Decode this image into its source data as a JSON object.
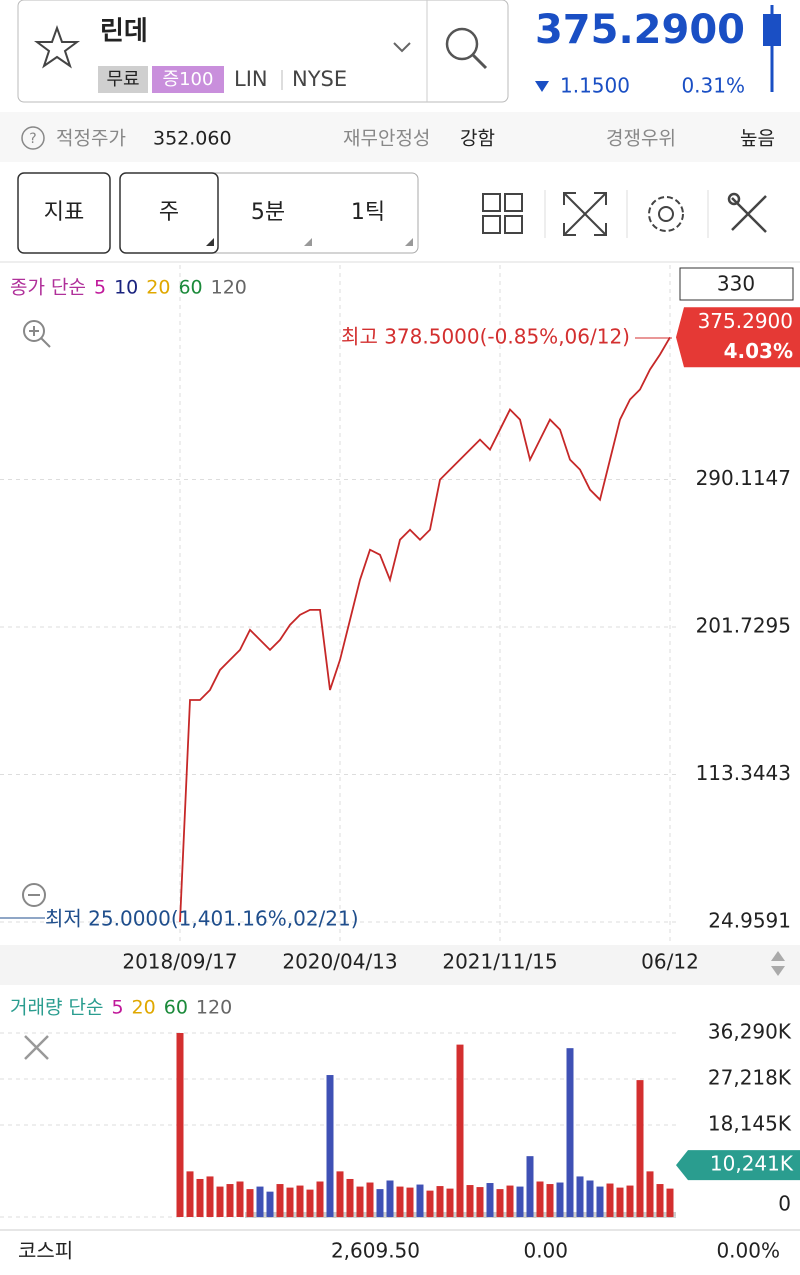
{
  "header": {
    "name": "린데",
    "badges": [
      "무료",
      "증100"
    ],
    "ticker": "LIN",
    "exchange": "NYSE",
    "price": "375.2900",
    "change": "1.1500",
    "change_pct": "0.31%"
  },
  "info": [
    {
      "label": "적정주가",
      "value": "352.060"
    },
    {
      "label": "재무안정성",
      "value": "강함"
    },
    {
      "label": "경쟁우위",
      "value": "높음"
    }
  ],
  "toolbar": {
    "indicator": "지표",
    "periods": [
      "주",
      "5분",
      "1틱"
    ]
  },
  "chart_data": [
    {
      "type": "line",
      "legend_title": "종가 단순",
      "ma_periods": [
        5,
        10,
        20,
        60,
        120
      ],
      "ma_colors": [
        "#c0189a",
        "#1a237e",
        "#e0a800",
        "#1b8a3a",
        "#666666"
      ],
      "scale_box": "330",
      "last_label": "375.2900",
      "last_change": "4.03%",
      "high_annotation": "최고 378.5000(-0.85%,06/12)",
      "low_annotation": "최저 25.0000(1,401.16%,02/21)",
      "categories": [
        "2018/09/17",
        null,
        null,
        null,
        null,
        null,
        null,
        null,
        null,
        null,
        null,
        null,
        null,
        null,
        null,
        null,
        "2020/04/13",
        null,
        null,
        null,
        null,
        null,
        null,
        null,
        null,
        null,
        null,
        null,
        null,
        null,
        null,
        null,
        "2021/11/15",
        null,
        null,
        null,
        null,
        null,
        null,
        null,
        null,
        null,
        null,
        null,
        null,
        null,
        null,
        null,
        null,
        "06/12"
      ],
      "series": [
        {
          "color": "#c62828",
          "values": [
            25,
            158,
            158,
            164,
            176,
            182,
            188,
            200,
            194,
            188,
            194,
            203,
            209,
            212,
            212,
            164,
            182,
            206,
            230,
            248,
            245,
            230,
            254,
            260,
            254,
            260,
            290,
            296,
            302,
            308,
            314,
            308,
            320,
            332,
            326,
            302,
            314,
            326,
            320,
            302,
            296,
            284,
            278,
            302,
            326,
            338,
            344,
            356,
            365,
            375.29
          ]
        }
      ],
      "ylim": [
        11.2,
        418.6
      ],
      "yticks": [
        24.9591,
        113.3443,
        201.7295,
        290.1147
      ],
      "grid": true
    },
    {
      "type": "bar",
      "legend_title": "거래량 단순",
      "ma_periods": [
        5,
        20,
        60,
        120
      ],
      "ma_colors": [
        "#c0189a",
        "#e0a800",
        "#1b8a3a",
        "#666666"
      ],
      "up_color": "#d32f2f",
      "down_color": "#3f51b5",
      "values": [
        36290,
        9000,
        7500,
        8000,
        6000,
        6500,
        7000,
        5500,
        6000,
        5000,
        6500,
        5800,
        6200,
        5400,
        7000,
        28000,
        9000,
        7500,
        6000,
        6800,
        5500,
        7200,
        6000,
        5800,
        6400,
        5200,
        6100,
        5600,
        34000,
        6300,
        5900,
        6700,
        5500,
        6200,
        6000,
        12000,
        7000,
        6500,
        6800,
        33300,
        8000,
        7200,
        6000,
        6600,
        5800,
        6200,
        27000,
        9000,
        6500,
        5600
      ],
      "marker": {
        "value": 10241,
        "label": "10,241K"
      },
      "ylim": [
        0,
        42800
      ],
      "yticks": [
        0,
        {
          "value": 18145,
          "label": "18,145K"
        },
        {
          "value": 27218,
          "label": "27,218K"
        },
        {
          "value": 36290,
          "label": "36,290K"
        }
      ],
      "grid": true
    }
  ],
  "footer": {
    "name": "코스피",
    "value": "2,609.50",
    "change": "0.00",
    "change_pct": "0.00%"
  }
}
